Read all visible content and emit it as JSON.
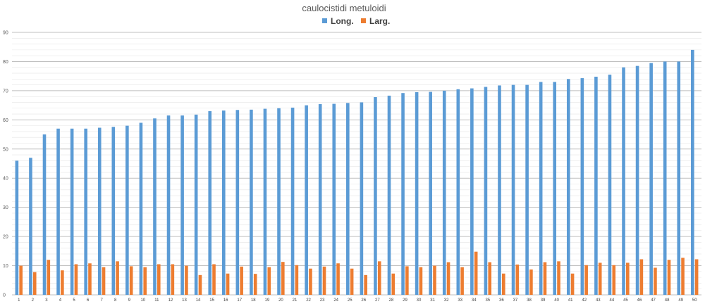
{
  "chart_data": {
    "type": "bar",
    "title": "caulocistidi metuloidi",
    "xlabel": "",
    "ylabel": "",
    "ylim": [
      0,
      90
    ],
    "y_major_step": 10,
    "y_minor_step": 2,
    "grid": true,
    "legend": "top",
    "categories": [
      "1",
      "2",
      "3",
      "4",
      "5",
      "6",
      "7",
      "8",
      "9",
      "10",
      "11",
      "12",
      "13",
      "14",
      "15",
      "16",
      "17",
      "18",
      "19",
      "20",
      "21",
      "22",
      "23",
      "24",
      "25",
      "26",
      "27",
      "28",
      "29",
      "30",
      "31",
      "32",
      "33",
      "34",
      "35",
      "36",
      "37",
      "38",
      "39",
      "40",
      "41",
      "42",
      "43",
      "44",
      "45",
      "46",
      "47",
      "48",
      "49",
      "50"
    ],
    "series": [
      {
        "name": "Long.",
        "color": "#5b9bd5",
        "values": [
          46,
          47,
          55,
          57,
          57,
          57,
          57.3,
          57.6,
          58,
          59,
          60.5,
          61.5,
          61.5,
          61.8,
          63,
          63.2,
          63.4,
          63.5,
          63.8,
          64,
          64.2,
          65,
          65.4,
          65.5,
          65.8,
          66,
          67.8,
          68.3,
          69.2,
          69.5,
          69.6,
          70,
          70.5,
          70.8,
          71.3,
          71.8,
          72,
          72,
          73,
          73,
          74,
          74.3,
          74.8,
          75.5,
          78,
          78.5,
          79.5,
          80,
          80,
          84
        ]
      },
      {
        "name": "Larg.",
        "color": "#ed7d31",
        "values": [
          10,
          7.8,
          12,
          8.4,
          10.5,
          10.8,
          9.5,
          11.5,
          9.8,
          9.5,
          10.5,
          10.5,
          10,
          6.8,
          10.5,
          7.3,
          9.7,
          7.2,
          9.5,
          11.3,
          10.2,
          9,
          9.7,
          10.8,
          9,
          6.8,
          11.5,
          7.3,
          9.8,
          9.5,
          10,
          11.2,
          9.5,
          14.8,
          11.2,
          7.3,
          10.4,
          8.7,
          11.2,
          11.5,
          7.3,
          10.2,
          11,
          10.2,
          11,
          12.2,
          9.3,
          12,
          12.7,
          12.2
        ]
      }
    ]
  }
}
